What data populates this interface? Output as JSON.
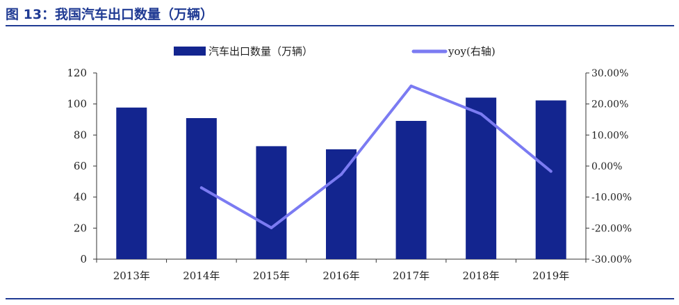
{
  "figure": {
    "title": "图 13：我国汽车出口数量（万辆）"
  },
  "colors": {
    "bar": "#13258F",
    "line": "#7B7BF2",
    "title": "#1F3A93",
    "axis": "#333333"
  },
  "chart_data": {
    "type": "bar+line",
    "categories": [
      "2013年",
      "2014年",
      "2015年",
      "2016年",
      "2017年",
      "2018年",
      "2019年"
    ],
    "series": [
      {
        "name": "汽车出口数量（万辆）",
        "type": "bar",
        "axis": "left",
        "values": [
          97.7,
          90.9,
          72.8,
          70.8,
          89.1,
          104.1,
          102.3
        ]
      },
      {
        "name": "yoy(右轴)",
        "type": "line",
        "axis": "right",
        "values": [
          null,
          -7.0,
          -19.9,
          -2.7,
          25.8,
          16.8,
          -1.7
        ]
      }
    ],
    "left_axis": {
      "ylim": [
        0,
        120
      ],
      "ticks": [
        "0",
        "20",
        "40",
        "60",
        "80",
        "100",
        "120"
      ]
    },
    "right_axis": {
      "ylim": [
        -30,
        30
      ],
      "ticks": [
        "-30.00%",
        "-20.00%",
        "-10.00%",
        "0.00%",
        "10.00%",
        "20.00%",
        "30.00%"
      ]
    },
    "legend": {
      "position": "top",
      "labels": [
        "汽车出口数量（万辆）",
        "yoy(右轴)"
      ]
    },
    "grid": false
  }
}
